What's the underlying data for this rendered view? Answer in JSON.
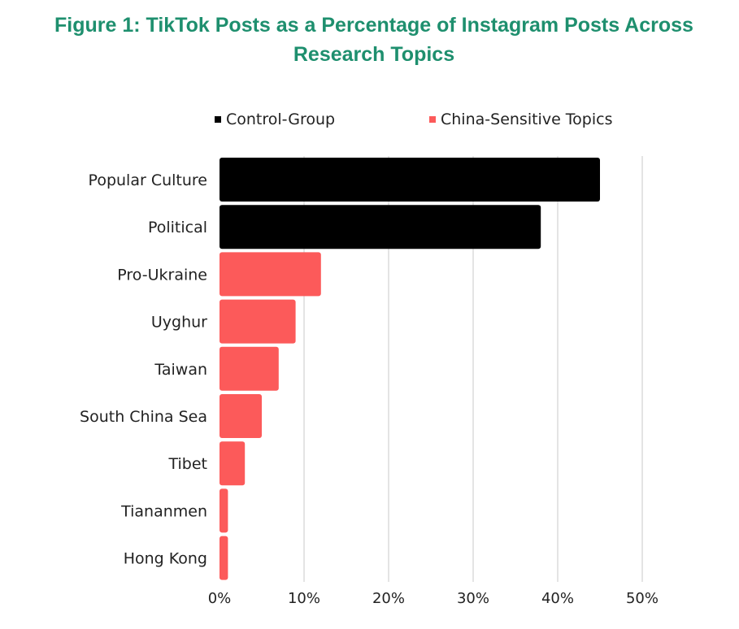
{
  "figure": {
    "title_line_1": "Figure 1: TikTok Posts as a Percentage of Instagram Posts Across",
    "title_line_2": "Research Topics"
  },
  "colors": {
    "title": "#1e8f6e",
    "control": "#000000",
    "china_sensitive": "#fc5a5a",
    "grid": "#e4e4e4",
    "text": "#222222"
  },
  "chart_data": {
    "type": "bar",
    "orientation": "horizontal",
    "title": "Figure 1: TikTok Posts as a Percentage of Instagram Posts Across Research Topics",
    "xlabel": "",
    "ylabel": "",
    "xlim": [
      0,
      50
    ],
    "x_ticks": [
      0,
      10,
      20,
      30,
      40,
      50
    ],
    "x_tick_labels": [
      "0%",
      "10%",
      "20%",
      "30%",
      "40%",
      "50%"
    ],
    "grid": "vertical",
    "legend_position": "top",
    "legend": [
      {
        "name": "Control-Group",
        "color": "#000000"
      },
      {
        "name": "China-Sensitive Topics",
        "color": "#fc5a5a"
      }
    ],
    "categories": [
      "Popular Culture",
      "Political",
      "Pro-Ukraine",
      "Uyghur",
      "Taiwan",
      "South China Sea",
      "Tibet",
      "Tiananmen",
      "Hong Kong"
    ],
    "values": [
      45,
      38,
      12,
      9,
      7,
      5,
      3,
      1,
      1
    ],
    "groups": [
      "Control-Group",
      "Control-Group",
      "China-Sensitive Topics",
      "China-Sensitive Topics",
      "China-Sensitive Topics",
      "China-Sensitive Topics",
      "China-Sensitive Topics",
      "China-Sensitive Topics",
      "China-Sensitive Topics"
    ]
  }
}
